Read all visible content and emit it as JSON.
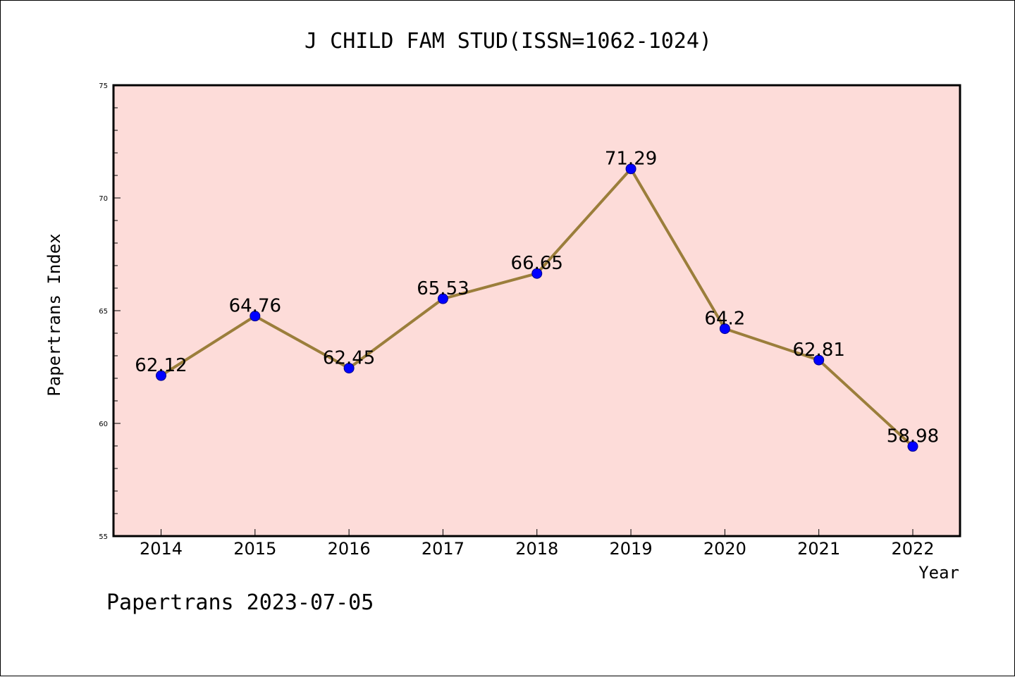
{
  "chart_data": {
    "type": "line",
    "title": "J CHILD FAM STUD(ISSN=1062-1024)",
    "xlabel": "Year",
    "ylabel": "Papertrans Index",
    "categories": [
      "2014",
      "2015",
      "2016",
      "2017",
      "2018",
      "2019",
      "2020",
      "2021",
      "2022"
    ],
    "series": [
      {
        "values": [
          62.12,
          64.76,
          62.45,
          65.53,
          66.65,
          71.29,
          64.2,
          62.81,
          58.98
        ],
        "labels": [
          "62.12",
          "64.76",
          "62.45",
          "65.53",
          "66.65",
          "71.29",
          "64.2",
          "62.81",
          "58.98"
        ]
      }
    ],
    "ylim": [
      55,
      75
    ],
    "yticks": [
      "55",
      "60",
      "65",
      "70",
      "75"
    ],
    "grid": false,
    "colors": {
      "plot_background": "#fddcd9",
      "line": "#9b7e3b",
      "marker": "#0000ff",
      "marker_edge": "#00008b"
    }
  },
  "footer": "Papertrans 2023-07-05"
}
